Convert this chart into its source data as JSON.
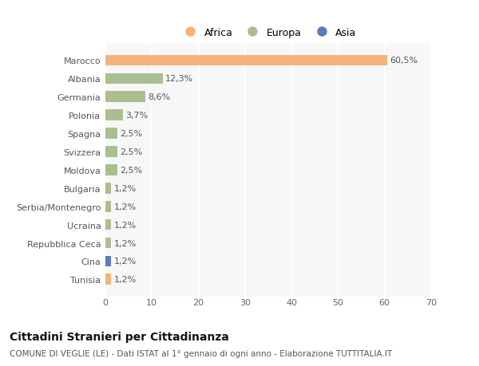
{
  "categories": [
    "Marocco",
    "Albania",
    "Germania",
    "Polonia",
    "Spagna",
    "Svizzera",
    "Moldova",
    "Bulgaria",
    "Serbia/Montenegro",
    "Ucraina",
    "Repubblica Ceca",
    "Cina",
    "Tunisia"
  ],
  "values": [
    60.5,
    12.3,
    8.6,
    3.7,
    2.5,
    2.5,
    2.5,
    1.2,
    1.2,
    1.2,
    1.2,
    1.2,
    1.2
  ],
  "labels": [
    "60,5%",
    "12,3%",
    "8,6%",
    "3,7%",
    "2,5%",
    "2,5%",
    "2,5%",
    "1,2%",
    "1,2%",
    "1,2%",
    "1,2%",
    "1,2%",
    "1,2%"
  ],
  "continents": [
    "Africa",
    "Europa",
    "Europa",
    "Europa",
    "Europa",
    "Europa",
    "Europa",
    "Europa",
    "Europa",
    "Europa",
    "Europa",
    "Asia",
    "Africa"
  ],
  "colors": {
    "Africa": "#F5B27A",
    "Europa": "#ABBE8F",
    "Asia": "#5B7DB8"
  },
  "legend_order": [
    "Africa",
    "Europa",
    "Asia"
  ],
  "legend_colors": [
    "#F5B27A",
    "#ABBE8F",
    "#5B7DB8"
  ],
  "xlim": [
    0,
    70
  ],
  "xticks": [
    0,
    10,
    20,
    30,
    40,
    50,
    60,
    70
  ],
  "title": "Cittadini Stranieri per Cittadinanza",
  "subtitle": "COMUNE DI VEGLIE (LE) - Dati ISTAT al 1° gennaio di ogni anno - Elaborazione TUTTITALIA.IT",
  "background_color": "#ffffff",
  "plot_background": "#f7f7f7",
  "grid_color": "#ffffff",
  "bar_height": 0.6,
  "label_fontsize": 8,
  "tick_fontsize": 8,
  "title_fontsize": 10,
  "subtitle_fontsize": 7.5
}
